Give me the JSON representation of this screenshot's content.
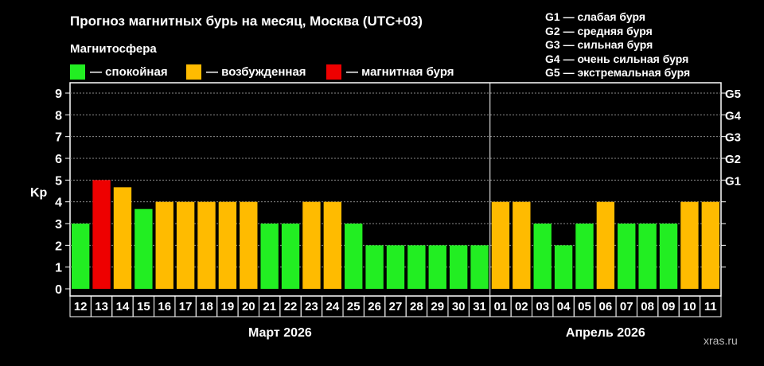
{
  "title": "Прогноз магнитных бурь на месяц, Москва (UTC+03)",
  "magnetosphere": {
    "title": "Магнитосфера",
    "legend": [
      {
        "label": "— спокойная",
        "color": "#22ee22"
      },
      {
        "label": "— возбужденная",
        "color": "#ffbb00"
      },
      {
        "label": "— магнитная буря",
        "color": "#ee0000"
      }
    ]
  },
  "gscale": [
    "G1 — слабая буря",
    "G2 — средняя буря",
    "G3 — сильная буря",
    "G4 — очень сильная буря",
    "G5 — экстремальная буря"
  ],
  "watermark": "xras.ru",
  "chart_data": {
    "type": "bar",
    "ylabel": "Kp",
    "ylim": [
      0,
      9
    ],
    "yticks": [
      0,
      1,
      2,
      3,
      4,
      5,
      6,
      7,
      8,
      9
    ],
    "right_ticks": [
      {
        "value": 5,
        "label": "G1"
      },
      {
        "value": 6,
        "label": "G2"
      },
      {
        "value": 7,
        "label": "G3"
      },
      {
        "value": 8,
        "label": "G4"
      },
      {
        "value": 9,
        "label": "G5"
      }
    ],
    "grid": true,
    "categories": [
      "12",
      "13",
      "14",
      "15",
      "16",
      "17",
      "18",
      "19",
      "20",
      "21",
      "22",
      "23",
      "24",
      "25",
      "26",
      "27",
      "28",
      "29",
      "30",
      "31",
      "01",
      "02",
      "03",
      "04",
      "05",
      "06",
      "07",
      "08",
      "09",
      "10",
      "11"
    ],
    "values": [
      3,
      5,
      4.67,
      3.67,
      4,
      4,
      4,
      4,
      4,
      3,
      3,
      4,
      4,
      3,
      2,
      2,
      2,
      2,
      2,
      2,
      4,
      4,
      3,
      2,
      3,
      4,
      3,
      3,
      3,
      4,
      4
    ],
    "levels": [
      "q",
      "s",
      "e",
      "q",
      "e",
      "e",
      "e",
      "e",
      "e",
      "q",
      "q",
      "e",
      "e",
      "q",
      "q",
      "q",
      "q",
      "q",
      "q",
      "q",
      "e",
      "e",
      "q",
      "q",
      "q",
      "e",
      "q",
      "q",
      "q",
      "e",
      "e"
    ],
    "month_groups": [
      {
        "label": "Март 2026",
        "count": 20
      },
      {
        "label": "Апрель 2026",
        "count": 11
      }
    ]
  }
}
